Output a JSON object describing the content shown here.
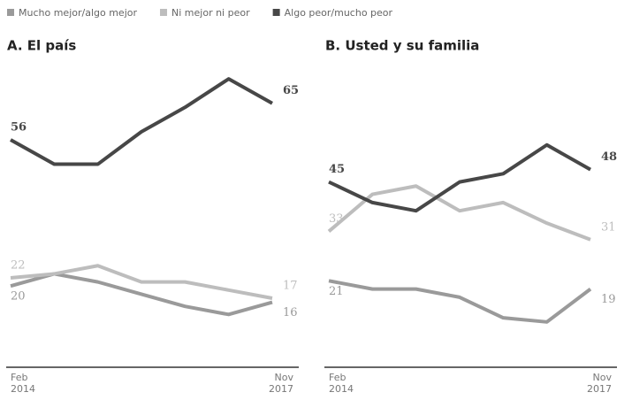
{
  "chart_data": [
    {
      "type": "line",
      "title": "A. El país",
      "categories": [
        "Feb 2014",
        null,
        null,
        null,
        null,
        null,
        "Nov 2017"
      ],
      "ylim": [
        0,
        73
      ],
      "series": [
        {
          "name": "Mucho mejor/algo mejor",
          "color": "#9a9a9a",
          "values": [
            20,
            23,
            21,
            18,
            15,
            13,
            16
          ]
        },
        {
          "name": "Ni mejor ni peor",
          "color": "#bdbdbd",
          "values": [
            22,
            23,
            25,
            21,
            21,
            19,
            17
          ]
        },
        {
          "name": "Algo peor/mucho peor",
          "color": "#474747",
          "values": [
            56,
            50,
            50,
            58,
            64,
            71,
            65
          ]
        }
      ]
    },
    {
      "type": "line",
      "title": "B. Usted y su familia",
      "categories": [
        "Feb 2014",
        null,
        null,
        null,
        null,
        null,
        "Nov 2017"
      ],
      "ylim": [
        0,
        72
      ],
      "series": [
        {
          "name": "Mucho mejor/algo mejor",
          "color": "#9a9a9a",
          "values": [
            21,
            19,
            19,
            17,
            12,
            11,
            19
          ]
        },
        {
          "name": "Ni mejor ni peor",
          "color": "#bdbdbd",
          "values": [
            33,
            42,
            44,
            38,
            40,
            35,
            31
          ]
        },
        {
          "name": "Algo peor/mucho peor",
          "color": "#474747",
          "values": [
            45,
            40,
            38,
            45,
            47,
            54,
            48
          ]
        }
      ]
    }
  ]
}
